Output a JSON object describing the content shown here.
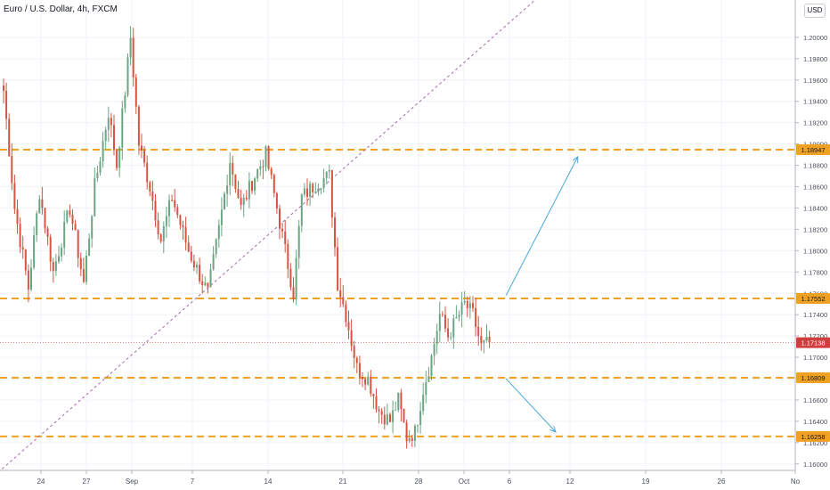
{
  "header": {
    "title": "Euro / U.S. Dollar, 4h, FXCM",
    "currency_button": "USD"
  },
  "colors": {
    "up": "#6ba583",
    "down": "#d75442",
    "level_line": "#f0a122",
    "level_label_bg": "#f0a122",
    "price_label_bg": "#d03d3d",
    "trendline": "#a46ca8",
    "arrow": "#4aa8d8",
    "grid": "#f0f3fa",
    "axis_text": "#4a4f5c"
  },
  "chart_data": {
    "type": "candlestick",
    "symbol": "EURUSD",
    "timeframe": "4h",
    "ylim": [
      1.1594,
      1.2035
    ],
    "y_ticks": [
      "1.20000",
      "1.19800",
      "1.19600",
      "1.19400",
      "1.19200",
      "1.19000",
      "1.18800",
      "1.18600",
      "1.18400",
      "1.18200",
      "1.18000",
      "1.17800",
      "1.17600",
      "1.17400",
      "1.17200",
      "1.17000",
      "1.16800",
      "1.16600",
      "1.16400",
      "1.16200",
      "1.16000"
    ],
    "x_ticks": [
      "24",
      "27",
      "Sep",
      "7",
      "14",
      "21",
      "28",
      "Oct",
      "6",
      "12",
      "19",
      "26",
      "No"
    ],
    "current_price": "1.17138",
    "levels": [
      "1.18947",
      "1.17552",
      "1.16809",
      "1.16258"
    ],
    "candle_anchors": [
      {
        "i": 0,
        "c": 1.195
      },
      {
        "i": 4,
        "c": 1.184
      },
      {
        "i": 9,
        "c": 1.1765
      },
      {
        "i": 13,
        "c": 1.1855
      },
      {
        "i": 18,
        "c": 1.178
      },
      {
        "i": 24,
        "c": 1.184
      },
      {
        "i": 29,
        "c": 1.177
      },
      {
        "i": 33,
        "c": 1.186
      },
      {
        "i": 38,
        "c": 1.193
      },
      {
        "i": 41,
        "c": 1.188
      },
      {
        "i": 44,
        "c": 1.195
      },
      {
        "i": 46,
        "c": 1.2
      },
      {
        "i": 49,
        "c": 1.19
      },
      {
        "i": 53,
        "c": 1.186
      },
      {
        "i": 57,
        "c": 1.181
      },
      {
        "i": 61,
        "c": 1.185
      },
      {
        "i": 67,
        "c": 1.18
      },
      {
        "i": 74,
        "c": 1.176
      },
      {
        "i": 78,
        "c": 1.182
      },
      {
        "i": 82,
        "c": 1.1885
      },
      {
        "i": 86,
        "c": 1.184
      },
      {
        "i": 91,
        "c": 1.187
      },
      {
        "i": 95,
        "c": 1.189
      },
      {
        "i": 99,
        "c": 1.184
      },
      {
        "i": 102,
        "c": 1.18
      },
      {
        "i": 105,
        "c": 1.176
      },
      {
        "i": 108,
        "c": 1.185
      },
      {
        "i": 114,
        "c": 1.1865
      },
      {
        "i": 118,
        "c": 1.187
      },
      {
        "i": 121,
        "c": 1.177
      },
      {
        "i": 124,
        "c": 1.174
      },
      {
        "i": 128,
        "c": 1.169
      },
      {
        "i": 132,
        "c": 1.168
      },
      {
        "i": 136,
        "c": 1.165
      },
      {
        "i": 140,
        "c": 1.164
      },
      {
        "i": 143,
        "c": 1.166
      },
      {
        "i": 146,
        "c": 1.1625
      },
      {
        "i": 149,
        "c": 1.163
      },
      {
        "i": 152,
        "c": 1.167
      },
      {
        "i": 155,
        "c": 1.17
      },
      {
        "i": 158,
        "c": 1.174
      },
      {
        "i": 161,
        "c": 1.172
      },
      {
        "i": 164,
        "c": 1.1735
      },
      {
        "i": 167,
        "c": 1.175
      },
      {
        "i": 170,
        "c": 1.174
      },
      {
        "i": 173,
        "c": 1.171
      },
      {
        "i": 176,
        "c": 1.1714
      }
    ],
    "trendline": {
      "from": {
        "i": -2,
        "price": 1.1592
      },
      "to": {
        "i": 200,
        "price": 1.2052
      }
    },
    "arrows": [
      {
        "from": {
          "i": 182,
          "price": 1.1758
        },
        "to": {
          "i": 208,
          "price": 1.1888
        }
      },
      {
        "from": {
          "i": 182,
          "price": 1.168
        },
        "to": {
          "i": 200,
          "price": 1.163
        }
      }
    ]
  }
}
